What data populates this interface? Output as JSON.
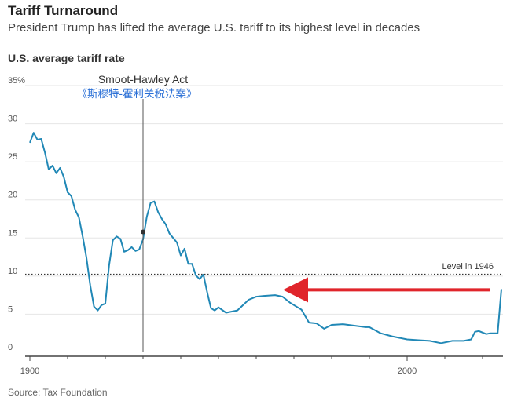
{
  "header": {
    "title": "Tariff Turnaround",
    "subtitle": "President Trump has lifted the average U.S. tariff to its highest level in decades"
  },
  "chart_title": "U.S. average tariff rate",
  "source": "Source: Tax Foundation",
  "colors": {
    "line": "#2188b6",
    "arrow": "#e0252b",
    "reference": "#333333",
    "annotation_cn": "#2a6fd6",
    "grid": "#e6e6e6"
  },
  "chart_data": {
    "type": "line",
    "title": "U.S. average tariff rate",
    "x_ticks": [
      1900,
      2000
    ],
    "y_ticks": [
      0,
      5,
      10,
      15,
      20,
      25,
      30,
      35
    ],
    "y_tick_labels": [
      "0",
      "5",
      "10",
      "15",
      "20",
      "25",
      "30",
      "35%"
    ],
    "xlim": [
      1900,
      2025
    ],
    "ylim": [
      0,
      35
    ],
    "grid": true,
    "series": [
      {
        "x": [
          1900,
          1901,
          1902,
          1903,
          1904,
          1905,
          1906,
          1907,
          1908,
          1909,
          1910,
          1911,
          1912,
          1913,
          1914,
          1915,
          1916,
          1917,
          1918,
          1919,
          1920,
          1921,
          1922,
          1923,
          1924,
          1925,
          1926,
          1927,
          1928,
          1929,
          1930,
          1931,
          1932,
          1933,
          1934,
          1935,
          1936,
          1937,
          1938,
          1939,
          1940,
          1941,
          1942,
          1943,
          1944,
          1945,
          1946,
          1947,
          1948,
          1949,
          1950,
          1952,
          1955,
          1958,
          1960,
          1962,
          1965,
          1967,
          1969,
          1970,
          1972,
          1974,
          1976,
          1978,
          1980,
          1983,
          1986,
          1989,
          1990,
          1993,
          1996,
          2000,
          2003,
          2006,
          2009,
          2012,
          2015,
          2017,
          2018,
          2019,
          2021,
          2022,
          2023,
          2024,
          2025
        ],
        "y": [
          27.5,
          28.8,
          27.9,
          28.0,
          26.2,
          24.0,
          24.5,
          23.5,
          24.2,
          23.0,
          21.0,
          20.5,
          18.7,
          17.7,
          15.2,
          12.4,
          8.8,
          6.0,
          5.5,
          6.2,
          6.4,
          11.4,
          14.7,
          15.2,
          14.9,
          13.2,
          13.4,
          13.8,
          13.3,
          13.5,
          14.8,
          17.8,
          19.6,
          19.8,
          18.4,
          17.5,
          16.8,
          15.6,
          15.0,
          14.4,
          12.7,
          13.6,
          11.6,
          11.6,
          10.1,
          9.6,
          10.2,
          7.9,
          5.8,
          5.5,
          5.9,
          5.2,
          5.5,
          6.9,
          7.3,
          7.4,
          7.5,
          7.3,
          6.5,
          6.2,
          5.6,
          3.9,
          3.8,
          3.1,
          3.6,
          3.7,
          3.5,
          3.3,
          3.3,
          2.5,
          2.1,
          1.7,
          1.6,
          1.5,
          1.2,
          1.5,
          1.5,
          1.7,
          2.7,
          2.8,
          2.4,
          2.5,
          2.5,
          2.5,
          8.3
        ]
      }
    ],
    "annotations": {
      "event_label": "Smoot-Hawley Act",
      "event_label_cn": "《斯穆特-霍利关税法案》",
      "event_x": 1930,
      "event_y": 15.8,
      "reference_label": "Level in 1946",
      "reference_value": 10.2,
      "arrow_from_x": 2024,
      "arrow_to_x": 1970,
      "arrow_y": 8.3
    }
  }
}
